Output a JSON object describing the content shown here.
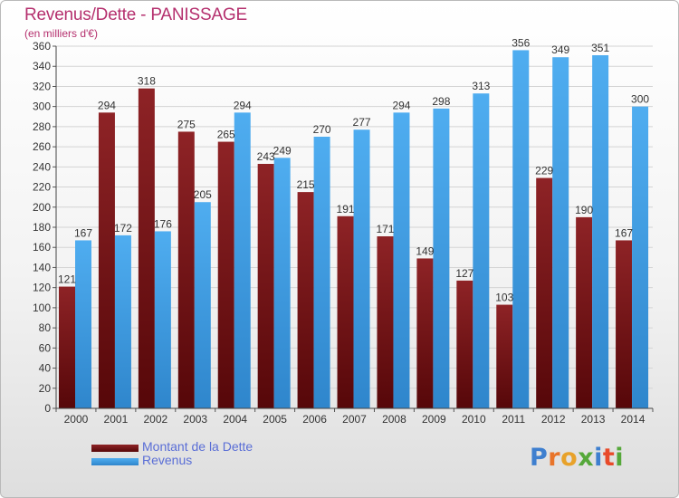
{
  "title": "Revenus/Dette - PANISSAGE",
  "subtitle": "(en milliers d'€)",
  "logo_text": "Proxiti",
  "colors": {
    "title": "#b5306e",
    "dette": "#7a1416",
    "revenus": "#3e9ee4",
    "axis_text": "#333333",
    "legend_text": "#5a6ed6"
  },
  "chart_data": {
    "type": "bar",
    "categories": [
      "2000",
      "2001",
      "2002",
      "2003",
      "2004",
      "2005",
      "2006",
      "2007",
      "2008",
      "2009",
      "2010",
      "2011",
      "2012",
      "2013",
      "2014"
    ],
    "series": [
      {
        "name": "Montant de la Dette",
        "values": [
          121,
          294,
          318,
          275,
          265,
          243,
          215,
          191,
          171,
          149,
          127,
          103,
          229,
          190,
          167
        ]
      },
      {
        "name": "Revenus",
        "values": [
          167,
          172,
          176,
          205,
          294,
          249,
          270,
          277,
          294,
          298,
          313,
          356,
          349,
          351,
          300
        ]
      }
    ],
    "ylim": [
      0,
      360
    ],
    "yticks": [
      0,
      20,
      40,
      60,
      80,
      100,
      120,
      140,
      160,
      180,
      200,
      220,
      240,
      260,
      280,
      300,
      320,
      340,
      360
    ],
    "grid": true,
    "legend": "bottom-left"
  }
}
